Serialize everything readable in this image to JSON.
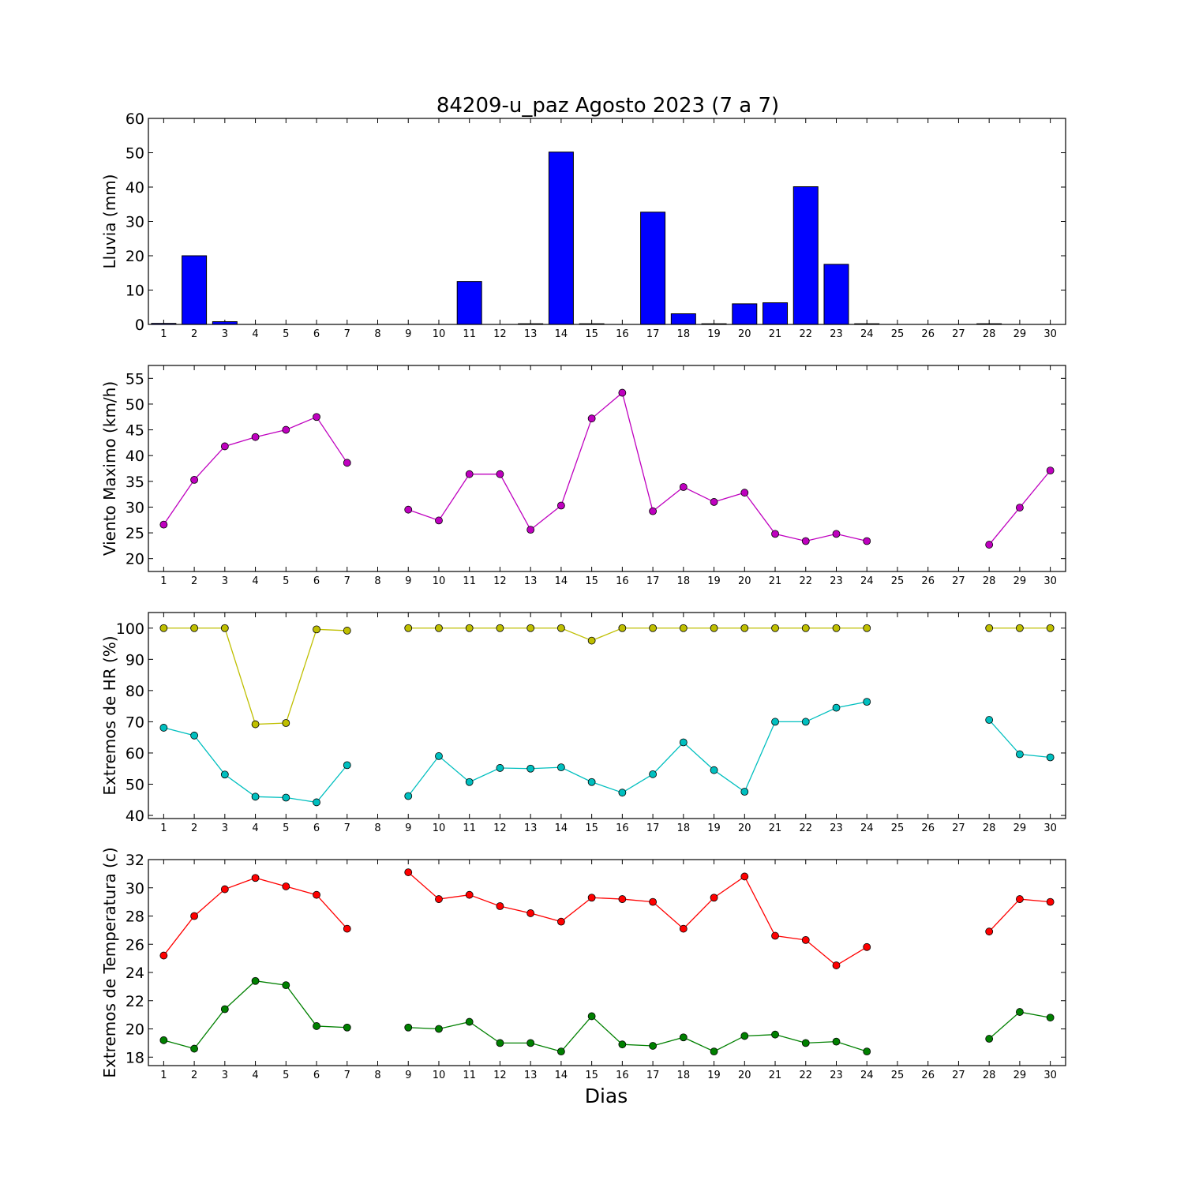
{
  "figure_title": "84209-u_paz Agosto 2023  (7 a 7)",
  "xlabel": "Dias",
  "colors": {
    "rain": "#0000ff",
    "wind": "#bf00bf",
    "hr_max": "#bfbf00",
    "hr_min": "#00bfbf",
    "temp_max": "#ff0000",
    "temp_min": "#008000"
  },
  "chart_data": [
    {
      "type": "bar",
      "ylabel": "Lluvia (mm)",
      "ylim": [
        0,
        60
      ],
      "yticks": [
        0,
        10,
        20,
        30,
        40,
        50,
        60
      ],
      "categories": [
        1,
        2,
        3,
        4,
        5,
        6,
        7,
        8,
        9,
        10,
        11,
        12,
        13,
        14,
        15,
        16,
        17,
        18,
        19,
        20,
        21,
        22,
        23,
        24,
        25,
        26,
        27,
        28,
        29,
        30
      ],
      "values": [
        0.3,
        20,
        0.8,
        0,
        0,
        0,
        0,
        0,
        0,
        0,
        12.5,
        0,
        0.2,
        50.2,
        0.2,
        0,
        32.7,
        3.1,
        0.2,
        6,
        6.3,
        40.1,
        17.5,
        0.2,
        0,
        0,
        0,
        0.2,
        0,
        0
      ]
    },
    {
      "type": "line",
      "ylabel": "Viento Maximo (km/h)",
      "ylim": [
        17.5,
        57.5
      ],
      "yticks": [
        20,
        25,
        30,
        35,
        40,
        45,
        50,
        55
      ],
      "x": [
        1,
        2,
        3,
        4,
        5,
        6,
        7,
        8,
        9,
        10,
        11,
        12,
        13,
        14,
        15,
        16,
        17,
        18,
        19,
        20,
        21,
        22,
        23,
        24,
        25,
        26,
        27,
        28,
        29,
        30
      ],
      "series": [
        {
          "values": [
            26.6,
            35.3,
            41.8,
            43.6,
            45.0,
            47.5,
            38.6,
            null,
            29.5,
            27.4,
            36.4,
            36.4,
            25.6,
            30.3,
            47.2,
            52.2,
            29.2,
            33.9,
            31.0,
            32.8,
            24.8,
            23.4,
            24.8,
            23.4,
            null,
            null,
            null,
            22.7,
            29.9,
            37.1
          ]
        }
      ]
    },
    {
      "type": "line",
      "ylabel": "Extremos de HR (%)",
      "ylim": [
        39,
        105
      ],
      "yticks": [
        40,
        50,
        60,
        70,
        80,
        90,
        100
      ],
      "x": [
        1,
        2,
        3,
        4,
        5,
        6,
        7,
        8,
        9,
        10,
        11,
        12,
        13,
        14,
        15,
        16,
        17,
        18,
        19,
        20,
        21,
        22,
        23,
        24,
        25,
        26,
        27,
        28,
        29,
        30
      ],
      "series": [
        {
          "values": [
            100,
            100,
            100,
            69.2,
            69.6,
            99.6,
            99.2,
            null,
            100,
            100,
            100,
            100,
            100,
            100,
            96,
            100,
            100,
            100,
            100,
            100,
            100,
            100,
            100,
            100,
            null,
            null,
            null,
            100,
            100,
            100
          ]
        },
        {
          "values": [
            68.1,
            65.6,
            53.1,
            46.0,
            45.7,
            44.2,
            56.1,
            null,
            46.2,
            59.0,
            50.7,
            55.2,
            55.0,
            55.4,
            50.7,
            47.3,
            53.2,
            63.4,
            54.5,
            47.6,
            70.0,
            70.0,
            74.5,
            76.4,
            null,
            null,
            null,
            70.6,
            59.6,
            58.6
          ]
        }
      ]
    },
    {
      "type": "line",
      "ylabel": "Extremos de Temperatura (c)",
      "ylim": [
        17.4,
        32
      ],
      "yticks": [
        18,
        20,
        22,
        24,
        26,
        28,
        30,
        32
      ],
      "x": [
        1,
        2,
        3,
        4,
        5,
        6,
        7,
        8,
        9,
        10,
        11,
        12,
        13,
        14,
        15,
        16,
        17,
        18,
        19,
        20,
        21,
        22,
        23,
        24,
        25,
        26,
        27,
        28,
        29,
        30
      ],
      "series": [
        {
          "values": [
            25.2,
            28.0,
            29.9,
            30.7,
            30.1,
            29.5,
            27.1,
            null,
            31.1,
            29.2,
            29.5,
            28.7,
            28.2,
            27.6,
            29.3,
            29.2,
            29.0,
            27.1,
            29.3,
            30.8,
            26.6,
            26.3,
            24.5,
            25.8,
            null,
            null,
            null,
            26.9,
            29.2,
            29.0
          ]
        },
        {
          "values": [
            19.2,
            18.6,
            21.4,
            23.4,
            23.1,
            20.2,
            20.1,
            null,
            20.1,
            20.0,
            20.5,
            19.0,
            19.0,
            18.4,
            20.9,
            18.9,
            18.8,
            19.4,
            18.4,
            19.5,
            19.6,
            19.0,
            19.1,
            18.4,
            null,
            null,
            null,
            19.3,
            21.2,
            20.8
          ]
        }
      ]
    }
  ]
}
